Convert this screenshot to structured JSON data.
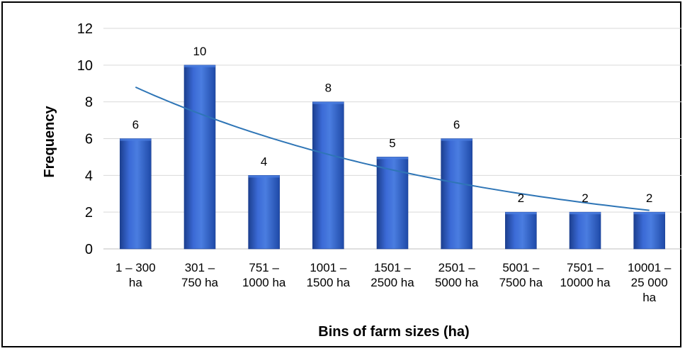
{
  "chart_data": {
    "type": "bar",
    "xlabel": "Bins of farm sizes (ha)",
    "ylabel": "Frequency",
    "ylim": [
      0,
      12
    ],
    "yticks": [
      0,
      2,
      4,
      6,
      8,
      10,
      12
    ],
    "grid": true,
    "categories": [
      [
        "1 – 300",
        "ha"
      ],
      [
        "301 –",
        "750 ha"
      ],
      [
        "751 –",
        "1000 ha"
      ],
      [
        "1001 –",
        "1500 ha"
      ],
      [
        "1501 –",
        "2500 ha"
      ],
      [
        "2501 –",
        "5000 ha"
      ],
      [
        "5001 –",
        "7500 ha"
      ],
      [
        "7501 –",
        "10000 ha"
      ],
      [
        "10001 –",
        "25 000",
        "ha"
      ]
    ],
    "values": [
      6,
      10,
      4,
      8,
      5,
      6,
      2,
      2,
      2
    ],
    "trendline": {
      "type": "exponential",
      "start": 8.8,
      "end": 2.1
    },
    "colors": {
      "bar": "#2a5cc4",
      "bar_dark": "#1c3f8f",
      "bar_light": "#4a7de0",
      "trend": "#2e75b6",
      "grid": "#d9d9d9"
    }
  }
}
